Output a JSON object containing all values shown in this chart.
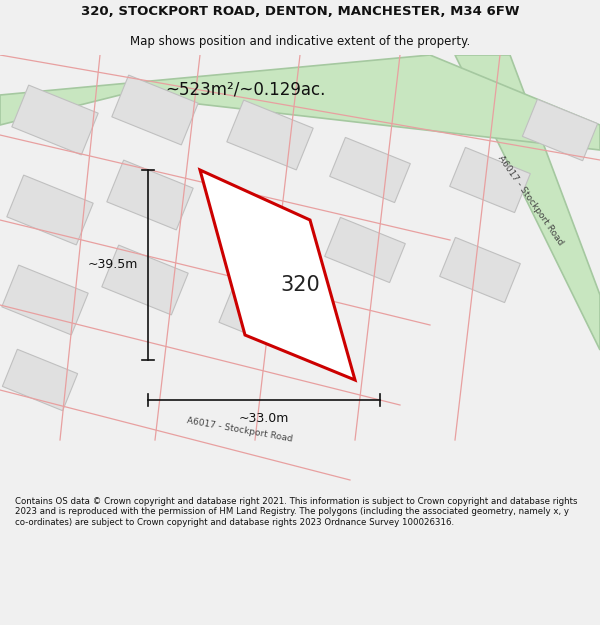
{
  "title": "320, STOCKPORT ROAD, DENTON, MANCHESTER, M34 6FW",
  "subtitle": "Map shows position and indicative extent of the property.",
  "area_text": "~523m²/~0.129ac.",
  "number_label": "320",
  "dim_width": "~33.0m",
  "dim_height": "~39.5m",
  "road_label": "A6017 - Stockport Road",
  "footer": "Contains OS data © Crown copyright and database right 2021. This information is subject to Crown copyright and database rights 2023 and is reproduced with the permission of HM Land Registry. The polygons (including the associated geometry, namely x, y co-ordinates) are subject to Crown copyright and database rights 2023 Ordnance Survey 100026316.",
  "bg_color": "#f0f0f0",
  "map_bg": "#ffffff",
  "road_fill": "#c8e6c0",
  "road_stroke": "#a5c8a0",
  "plot_stroke": "#e8a0a0",
  "building_fill": "#e0e0e0",
  "building_stroke": "#c0c0c0",
  "highlight_stroke": "#cc0000",
  "highlight_fill": "#ffffff",
  "dim_color": "#111111",
  "title_color": "#111111",
  "footer_color": "#111111"
}
